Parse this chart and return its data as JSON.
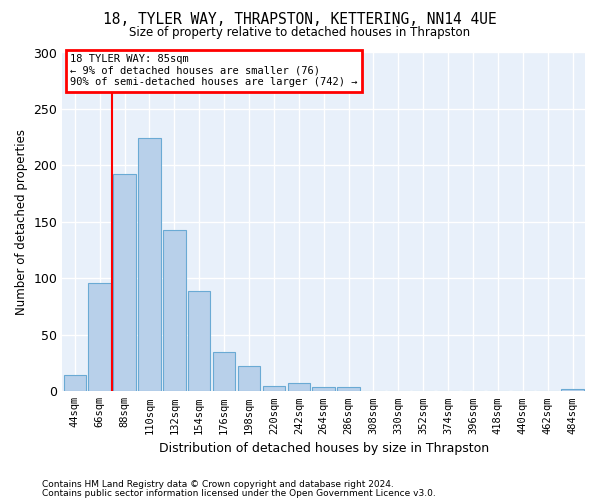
{
  "title1": "18, TYLER WAY, THRAPSTON, KETTERING, NN14 4UE",
  "title2": "Size of property relative to detached houses in Thrapston",
  "xlabel": "Distribution of detached houses by size in Thrapston",
  "ylabel": "Number of detached properties",
  "categories": [
    "44sqm",
    "66sqm",
    "88sqm",
    "110sqm",
    "132sqm",
    "154sqm",
    "176sqm",
    "198sqm",
    "220sqm",
    "242sqm",
    "264sqm",
    "286sqm",
    "308sqm",
    "330sqm",
    "352sqm",
    "374sqm",
    "396sqm",
    "418sqm",
    "440sqm",
    "462sqm",
    "484sqm"
  ],
  "values": [
    14,
    96,
    192,
    224,
    143,
    89,
    35,
    22,
    5,
    7,
    4,
    4,
    0,
    0,
    0,
    0,
    0,
    0,
    0,
    0,
    2
  ],
  "bar_color": "#b8d0ea",
  "bar_edge_color": "#6aaad4",
  "red_line_x": 1.5,
  "annotation_text": "18 TYLER WAY: 85sqm\n← 9% of detached houses are smaller (76)\n90% of semi-detached houses are larger (742) →",
  "ylim": [
    0,
    300
  ],
  "yticks": [
    0,
    50,
    100,
    150,
    200,
    250,
    300
  ],
  "bg_color": "#e8f0fa",
  "grid_color": "#ffffff",
  "footer1": "Contains HM Land Registry data © Crown copyright and database right 2024.",
  "footer2": "Contains public sector information licensed under the Open Government Licence v3.0."
}
